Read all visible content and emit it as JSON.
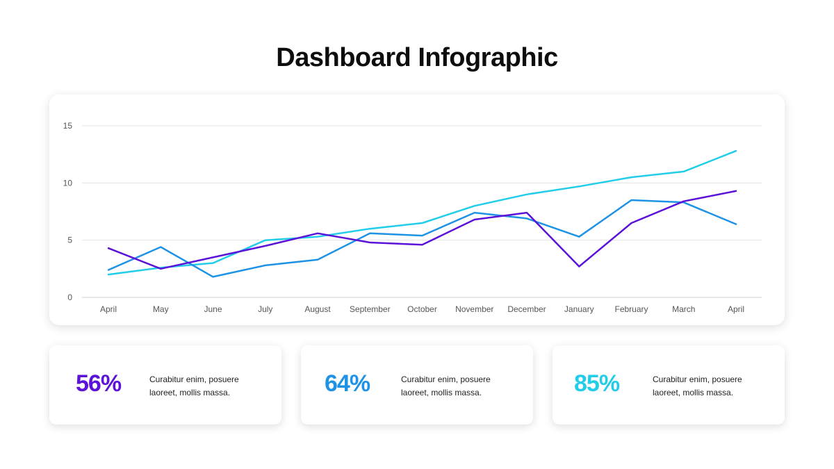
{
  "title": "Dashboard Infographic",
  "chart_data": {
    "type": "line",
    "categories": [
      "April",
      "May",
      "June",
      "July",
      "August",
      "September",
      "October",
      "November",
      "December",
      "January",
      "February",
      "March",
      "April"
    ],
    "y_ticks": [
      "0",
      "5",
      "10",
      "15"
    ],
    "ylim": [
      0,
      15
    ],
    "grid": true,
    "legend": "none",
    "series": [
      {
        "color": "#5b12d9",
        "values": [
          4.3,
          2.5,
          3.5,
          4.5,
          5.6,
          4.8,
          4.6,
          6.8,
          7.4,
          2.7,
          6.5,
          8.4,
          9.3
        ]
      },
      {
        "color": "#1e93e6",
        "values": [
          2.4,
          4.4,
          1.8,
          2.8,
          3.3,
          5.6,
          5.4,
          7.4,
          6.9,
          5.3,
          8.5,
          8.3,
          6.4
        ]
      },
      {
        "color": "#22cdea",
        "values": [
          2.0,
          2.6,
          3.0,
          5.0,
          5.3,
          6.0,
          6.5,
          8.0,
          9.0,
          9.7,
          10.5,
          11.0,
          12.8
        ]
      }
    ]
  },
  "stats": [
    {
      "value": "56%",
      "color": "#5b12d9",
      "text_line1": "Curabitur enim, posuere",
      "text_line2": "laoreet, mollis massa."
    },
    {
      "value": "64%",
      "color": "#1e93e6",
      "text_line1": "Curabitur enim, posuere",
      "text_line2": "laoreet, mollis massa."
    },
    {
      "value": "85%",
      "color": "#22cdea",
      "text_line1": "Curabitur enim, posuere",
      "text_line2": "laoreet, mollis massa."
    }
  ]
}
